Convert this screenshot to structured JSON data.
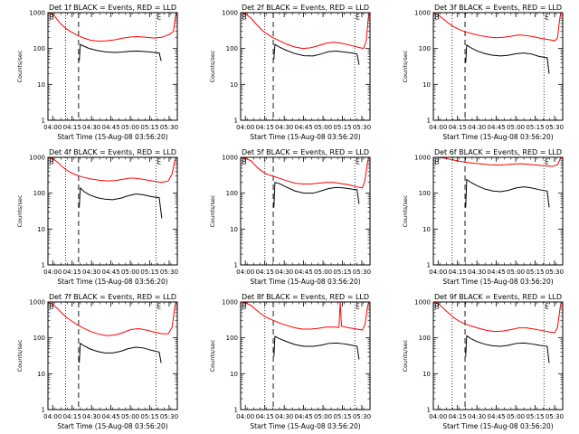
{
  "layout": {
    "rows": 3,
    "cols": 3
  },
  "shared": {
    "ylabel": "Counts/sec",
    "xlabel": "Start Time (15-Aug-08 03:56:20)",
    "x_tick_labels": [
      "04:00",
      "04:15",
      "04:30",
      "04:45",
      "05:00",
      "05:15",
      "05:30"
    ],
    "x_ticks_min": [
      3.67,
      18.67,
      33.67,
      48.67,
      63.67,
      78.67,
      93.67
    ],
    "y_tick_labels": [
      "1",
      "10",
      "100",
      "1000"
    ],
    "y_ticks": [
      1,
      10,
      100,
      1000
    ],
    "xlim_min": [
      0,
      100
    ],
    "ylim": [
      1,
      1000
    ],
    "yscale": "log",
    "colors": {
      "events": "#000000",
      "lld": "#ff0000",
      "axes": "#000000"
    },
    "corner_mark_left": "B",
    "corner_mark_right": "E"
  },
  "chart_data": [
    {
      "type": "line",
      "title": "Det 1f BLACK = Events, RED = LLD",
      "markers_x_min": {
        "dotted_start": 13.7,
        "dashed": 23.7,
        "dotted_end": 83.5
      },
      "series": [
        {
          "name": "Events",
          "color": "#000000",
          "x_range_min": [
            24.2,
            87.5
          ],
          "points_min": [
            24.2,
            45,
            25,
            130,
            28,
            115,
            32,
            100,
            38,
            88,
            45,
            80,
            52,
            78,
            58,
            80,
            64,
            84,
            70,
            85,
            76,
            82,
            82,
            78,
            86,
            75,
            87.5,
            45
          ]
        },
        {
          "name": "LLD",
          "color": "#ff0000",
          "x_range_min": [
            0,
            100
          ],
          "points_min": [
            0,
            1000,
            4,
            900,
            7,
            650,
            10,
            480,
            14,
            360,
            18,
            290,
            22,
            240,
            27,
            200,
            33,
            170,
            40,
            160,
            46,
            165,
            52,
            175,
            58,
            195,
            64,
            210,
            70,
            215,
            76,
            205,
            82,
            195,
            88,
            205,
            94,
            250,
            97,
            300,
            98.5,
            750,
            99.5,
            1000
          ]
        }
      ]
    },
    {
      "type": "line",
      "title": "Det 2f BLACK = Events, RED = LLD",
      "markers_x_min": {
        "dotted_start": 18.7,
        "dashed": 25.2,
        "dotted_end": 88.2
      },
      "series": [
        {
          "name": "Events",
          "color": "#000000",
          "x_range_min": [
            25.7,
            91.5
          ],
          "points_min": [
            25.7,
            50,
            26.5,
            130,
            30,
            110,
            35,
            90,
            42,
            72,
            49,
            63,
            56,
            62,
            62,
            70,
            68,
            82,
            74,
            85,
            80,
            80,
            86,
            75,
            90,
            70,
            91.5,
            35
          ]
        },
        {
          "name": "LLD",
          "color": "#ff0000",
          "x_range_min": [
            0,
            100
          ],
          "points_min": [
            0,
            1000,
            4,
            920,
            8,
            700,
            12,
            480,
            16,
            340,
            20,
            260,
            25,
            200,
            30,
            165,
            36,
            130,
            42,
            110,
            48,
            100,
            54,
            105,
            60,
            120,
            66,
            140,
            72,
            150,
            78,
            140,
            84,
            125,
            90,
            110,
            95,
            100,
            97,
            160,
            98.5,
            600,
            99.3,
            1000
          ]
        }
      ]
    },
    {
      "type": "line",
      "title": "Det 3f BLACK = Events, RED = LLD",
      "markers_x_min": {
        "dotted_start": 14.5,
        "dashed": 24.5,
        "dotted_end": 85.5
      },
      "series": [
        {
          "name": "Events",
          "color": "#000000",
          "x_range_min": [
            25.0,
            89.5
          ],
          "points_min": [
            25,
            40,
            25.8,
            125,
            29,
            105,
            34,
            85,
            40,
            72,
            46,
            65,
            52,
            62,
            58,
            65,
            64,
            72,
            70,
            75,
            76,
            70,
            82,
            60,
            88,
            55,
            89.5,
            20
          ]
        },
        {
          "name": "LLD",
          "color": "#ff0000",
          "x_range_min": [
            0,
            100
          ],
          "points_min": [
            0,
            1000,
            4,
            850,
            8,
            650,
            12,
            500,
            16,
            400,
            20,
            340,
            25,
            290,
            30,
            260,
            36,
            230,
            42,
            210,
            48,
            200,
            54,
            205,
            60,
            220,
            66,
            240,
            72,
            230,
            78,
            210,
            84,
            190,
            90,
            175,
            94,
            165,
            96,
            200,
            97.5,
            600,
            98.5,
            1000
          ]
        }
      ]
    },
    {
      "type": "line",
      "title": "Det 4f BLACK = Events, RED = LLD",
      "markers_x_min": {
        "dotted_start": 13.7,
        "dashed": 23.7,
        "dotted_end": 83.5
      },
      "series": [
        {
          "name": "Events",
          "color": "#000000",
          "x_range_min": [
            24.2,
            88.0
          ],
          "points_min": [
            24.2,
            40,
            25,
            140,
            28,
            110,
            32,
            90,
            38,
            75,
            44,
            68,
            50,
            66,
            56,
            72,
            62,
            85,
            68,
            95,
            74,
            90,
            80,
            80,
            86,
            75,
            88,
            20
          ]
        },
        {
          "name": "LLD",
          "color": "#ff0000",
          "x_range_min": [
            0,
            100
          ],
          "points_min": [
            0,
            1000,
            4,
            900,
            8,
            700,
            11,
            550,
            14,
            450,
            18,
            370,
            22,
            320,
            27,
            280,
            33,
            250,
            40,
            230,
            46,
            220,
            52,
            225,
            58,
            245,
            64,
            265,
            70,
            255,
            76,
            235,
            82,
            215,
            88,
            200,
            93,
            220,
            96,
            350,
            98,
            800,
            99,
            1000
          ]
        }
      ]
    },
    {
      "type": "line",
      "title": "Det 5f BLACK = Events, RED = LLD",
      "markers_x_min": {
        "dotted_start": 18.7,
        "dashed": 25.2,
        "dotted_end": 88.2
      },
      "series": [
        {
          "name": "Events",
          "color": "#000000",
          "x_range_min": [
            25.7,
            91.5
          ],
          "points_min": [
            25.7,
            40,
            26.5,
            200,
            30,
            185,
            35,
            150,
            42,
            115,
            49,
            100,
            56,
            100,
            62,
            115,
            68,
            135,
            74,
            145,
            80,
            140,
            86,
            130,
            90,
            125,
            91.5,
            50
          ]
        },
        {
          "name": "LLD",
          "color": "#ff0000",
          "x_range_min": [
            0,
            100
          ],
          "points_min": [
            0,
            1000,
            4,
            920,
            8,
            800,
            12,
            560,
            16,
            420,
            20,
            340,
            25,
            300,
            30,
            260,
            36,
            220,
            42,
            190,
            48,
            180,
            54,
            180,
            60,
            190,
            66,
            200,
            72,
            200,
            78,
            185,
            84,
            170,
            90,
            150,
            94,
            140,
            96,
            220,
            98,
            700,
            99,
            1000
          ]
        }
      ]
    },
    {
      "type": "line",
      "title": "Det 6f BLACK = Events, RED = LLD",
      "markers_x_min": {
        "dotted_start": 14.5,
        "dashed": 24.5,
        "dotted_end": 85.5
      },
      "series": [
        {
          "name": "Events",
          "color": "#000000",
          "x_range_min": [
            25.0,
            89.5
          ],
          "points_min": [
            25,
            40,
            25.8,
            240,
            29,
            200,
            34,
            160,
            40,
            130,
            46,
            115,
            52,
            110,
            58,
            120,
            64,
            140,
            70,
            150,
            76,
            140,
            82,
            125,
            88,
            115,
            89.5,
            40
          ]
        },
        {
          "name": "LLD",
          "color": "#ff0000",
          "x_range_min": [
            0,
            100
          ],
          "points_min": [
            0,
            1000,
            5,
            1000,
            10,
            920,
            15,
            850,
            20,
            780,
            26,
            720,
            32,
            680,
            38,
            650,
            44,
            620,
            50,
            610,
            56,
            620,
            62,
            650,
            68,
            660,
            74,
            640,
            80,
            610,
            86,
            580,
            92,
            560,
            96,
            620,
            98,
            900,
            99,
            1000
          ]
        }
      ]
    },
    {
      "type": "line",
      "title": "Det 7f BLACK = Events, RED = LLD",
      "markers_x_min": {
        "dotted_start": 13.7,
        "dashed": 23.7,
        "dotted_end": 83.5
      },
      "series": [
        {
          "name": "Events",
          "color": "#000000",
          "x_range_min": [
            24.2,
            87.5
          ],
          "points_min": [
            24.2,
            20,
            25,
            70,
            28,
            60,
            32,
            50,
            38,
            42,
            44,
            38,
            50,
            38,
            56,
            42,
            62,
            50,
            68,
            55,
            74,
            52,
            80,
            45,
            86,
            40,
            87.5,
            20
          ]
        },
        {
          "name": "LLD",
          "color": "#ff0000",
          "x_range_min": [
            0,
            100
          ],
          "points_min": [
            0,
            1000,
            4,
            850,
            8,
            620,
            11,
            480,
            14,
            380,
            18,
            300,
            22,
            240,
            27,
            190,
            33,
            150,
            40,
            125,
            46,
            115,
            52,
            120,
            58,
            140,
            64,
            170,
            70,
            180,
            76,
            165,
            82,
            145,
            88,
            130,
            93,
            130,
            96,
            200,
            98,
            700,
            99,
            1000
          ]
        }
      ]
    },
    {
      "type": "line",
      "title": "Det 8f BLACK = Events, RED = LLD",
      "markers_x_min": {
        "dotted_start": 18.7,
        "dashed": 25.2,
        "dotted_end": 88.2
      },
      "series": [
        {
          "name": "Events",
          "color": "#000000",
          "x_range_min": [
            25.7,
            91.5
          ],
          "points_min": [
            25.7,
            30,
            26.5,
            110,
            30,
            95,
            35,
            80,
            42,
            65,
            49,
            58,
            56,
            58,
            62,
            62,
            68,
            70,
            74,
            72,
            80,
            68,
            86,
            62,
            90,
            58,
            91.5,
            25
          ]
        },
        {
          "name": "LLD",
          "color": "#ff0000",
          "x_range_min": [
            0,
            100
          ],
          "points_min": [
            0,
            1000,
            4,
            950,
            8,
            800,
            12,
            600,
            16,
            460,
            20,
            370,
            25,
            310,
            30,
            260,
            36,
            220,
            42,
            190,
            48,
            175,
            54,
            175,
            60,
            185,
            66,
            200,
            72,
            200,
            76,
            195,
            77,
            1000,
            78,
            210,
            84,
            190,
            90,
            175,
            94,
            165,
            96,
            230,
            98,
            700,
            99,
            1000
          ]
        }
      ]
    },
    {
      "type": "line",
      "title": "Det 9f BLACK = Events, RED = LLD",
      "markers_x_min": {
        "dotted_start": 14.5,
        "dashed": 24.5,
        "dotted_end": 85.5
      },
      "series": [
        {
          "name": "Events",
          "color": "#000000",
          "x_range_min": [
            25.0,
            89.5
          ],
          "points_min": [
            25,
            30,
            25.8,
            115,
            29,
            95,
            34,
            78,
            40,
            66,
            46,
            60,
            52,
            58,
            58,
            62,
            64,
            70,
            70,
            72,
            76,
            68,
            82,
            62,
            88,
            58,
            89.5,
            20
          ]
        },
        {
          "name": "LLD",
          "color": "#ff0000",
          "x_range_min": [
            0,
            100
          ],
          "points_min": [
            0,
            1000,
            4,
            900,
            8,
            650,
            12,
            480,
            16,
            360,
            20,
            290,
            25,
            240,
            30,
            210,
            36,
            180,
            42,
            160,
            48,
            150,
            54,
            155,
            60,
            170,
            66,
            190,
            72,
            190,
            78,
            175,
            84,
            160,
            90,
            145,
            94,
            140,
            96,
            200,
            98,
            700,
            99,
            1000
          ]
        }
      ]
    }
  ]
}
